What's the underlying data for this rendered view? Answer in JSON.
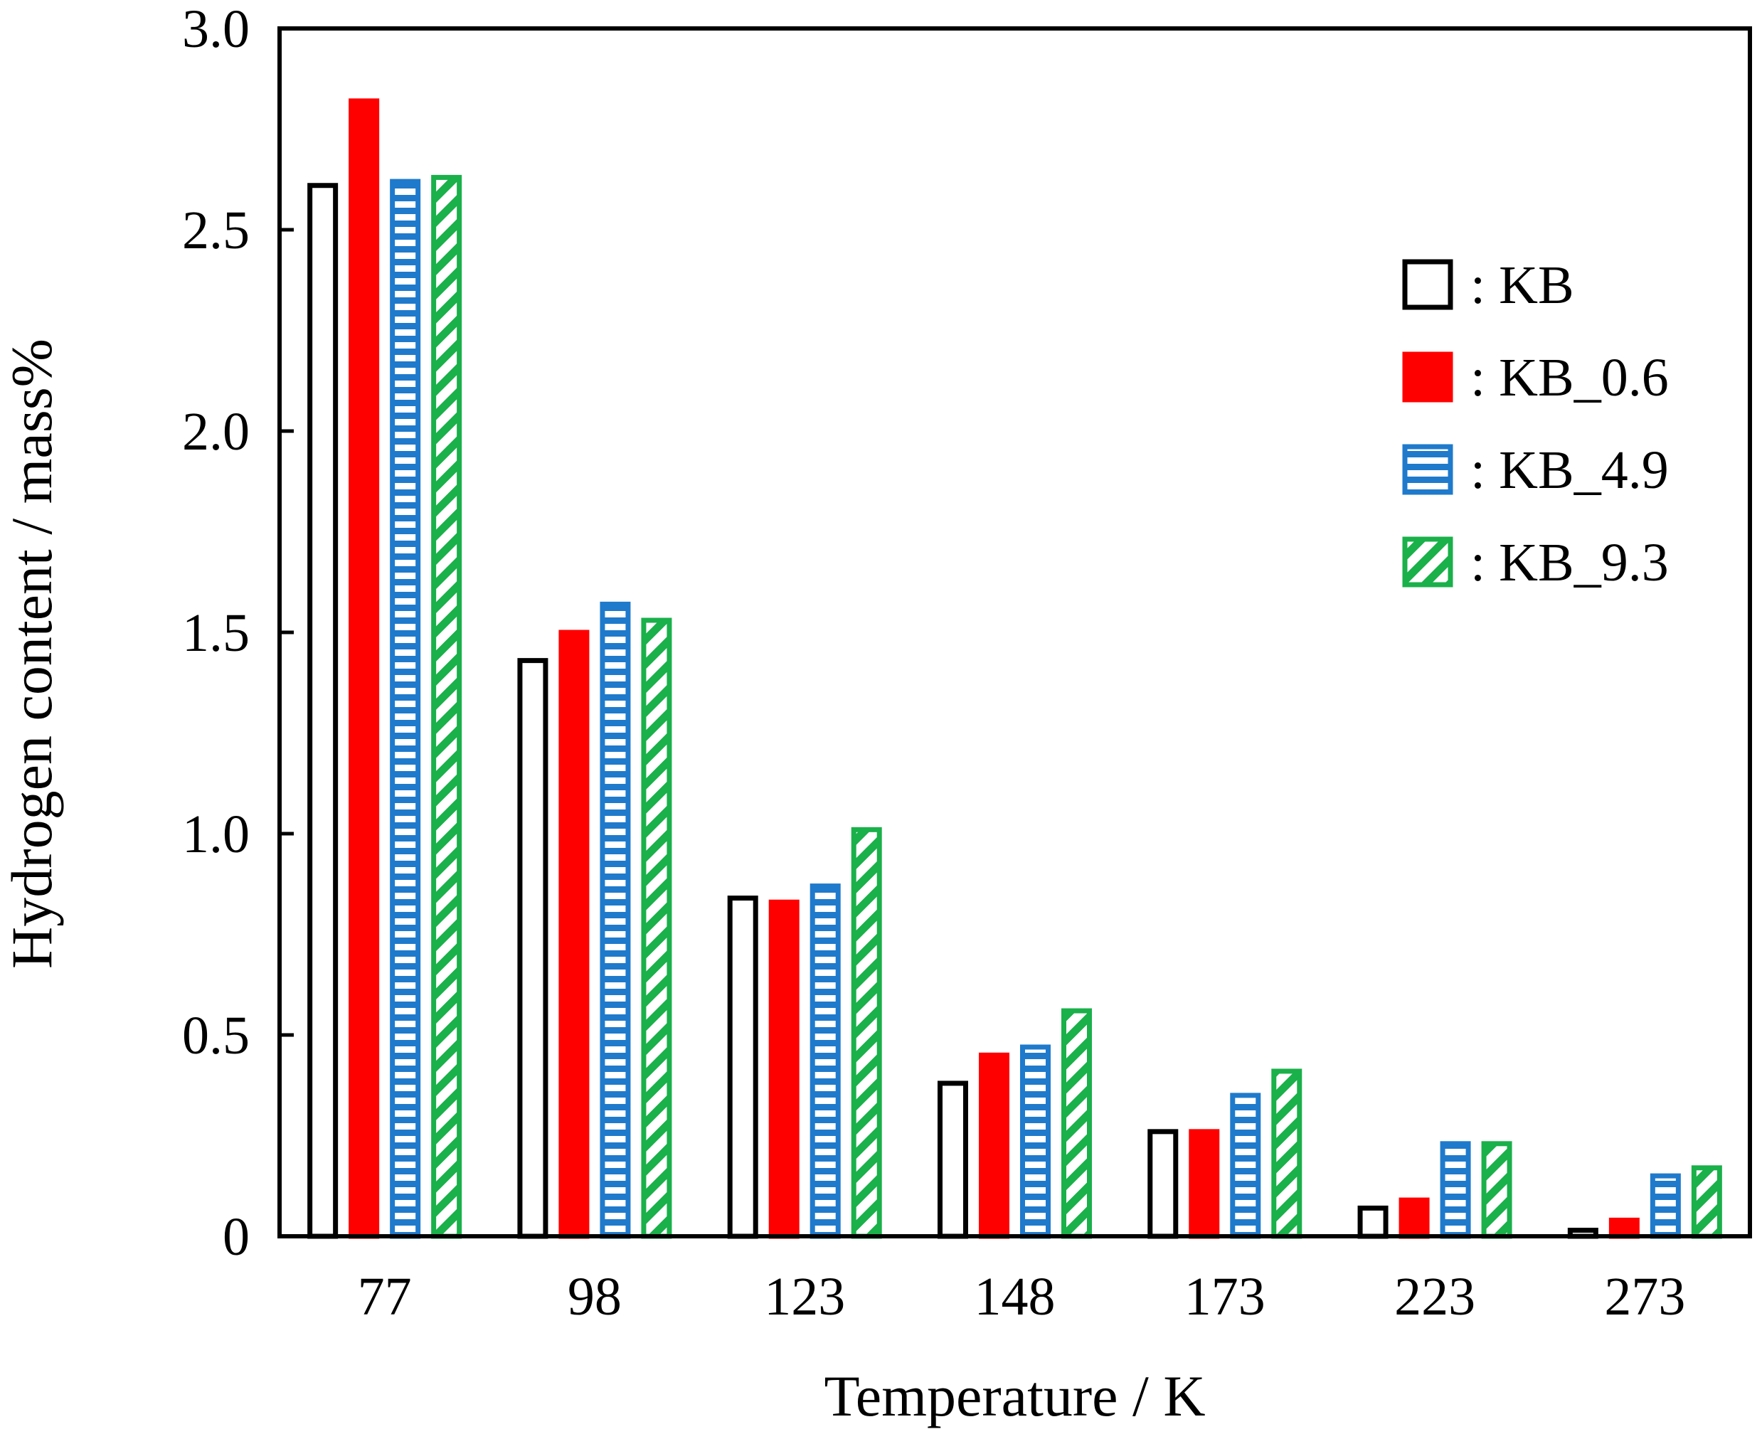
{
  "chart_data": {
    "type": "bar",
    "title": "",
    "xlabel": "Temperature / K",
    "ylabel": "Hydrogen content / mass%",
    "ylim": [
      0,
      3.0
    ],
    "ytick_values": [
      0,
      0.5,
      1.0,
      1.5,
      2.0,
      2.5,
      3.0
    ],
    "ytick_labels": [
      "0",
      "0.5",
      "1.0",
      "1.5",
      "2.0",
      "2.5",
      "3.0"
    ],
    "categories": [
      "77",
      "98",
      "123",
      "148",
      "173",
      "223",
      "273"
    ],
    "legend_position": "right",
    "series": [
      {
        "name": "KB",
        "legend_label": ": KB",
        "style": "outline",
        "color": "#000000",
        "values": [
          2.61,
          1.43,
          0.84,
          0.38,
          0.26,
          0.07,
          0.015
        ]
      },
      {
        "name": "KB_0.6",
        "legend_label": ": KB_0.6",
        "style": "solid",
        "color": "#ff0000",
        "values": [
          2.82,
          1.5,
          0.83,
          0.45,
          0.26,
          0.09,
          0.04
        ]
      },
      {
        "name": "KB_4.9",
        "legend_label": ": KB_4.9",
        "style": "horizontal-stripes",
        "color": "#1f7acc",
        "values": [
          2.62,
          1.57,
          0.87,
          0.47,
          0.35,
          0.23,
          0.15
        ]
      },
      {
        "name": "KB_9.3",
        "legend_label": ": KB_9.3",
        "style": "diagonal-hatch",
        "color": "#1ab04a",
        "values": [
          2.63,
          1.53,
          1.01,
          0.56,
          0.41,
          0.23,
          0.17
        ]
      }
    ]
  }
}
